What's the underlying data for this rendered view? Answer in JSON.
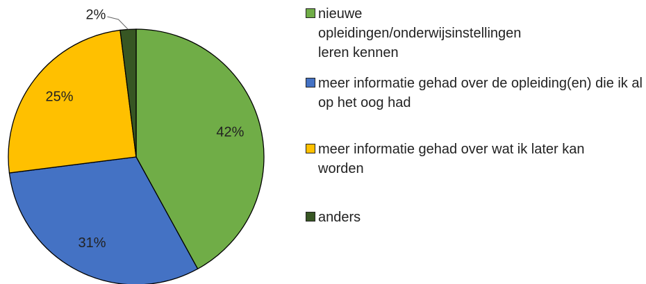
{
  "chart_data": {
    "type": "pie",
    "categories": [
      "nieuwe opleidingen/onderwijsinstellingen leren kennen",
      "meer informatie gehad over de opleiding(en) die ik al op het oog had",
      "meer informatie gehad over wat ik later kan worden",
      "anders"
    ],
    "values": [
      42,
      31,
      25,
      2
    ],
    "value_labels": [
      "42%",
      "31%",
      "25%",
      "2%"
    ],
    "colors": [
      "#70ad47",
      "#4472c4",
      "#ffc000",
      "#375623"
    ],
    "legend": "right"
  }
}
